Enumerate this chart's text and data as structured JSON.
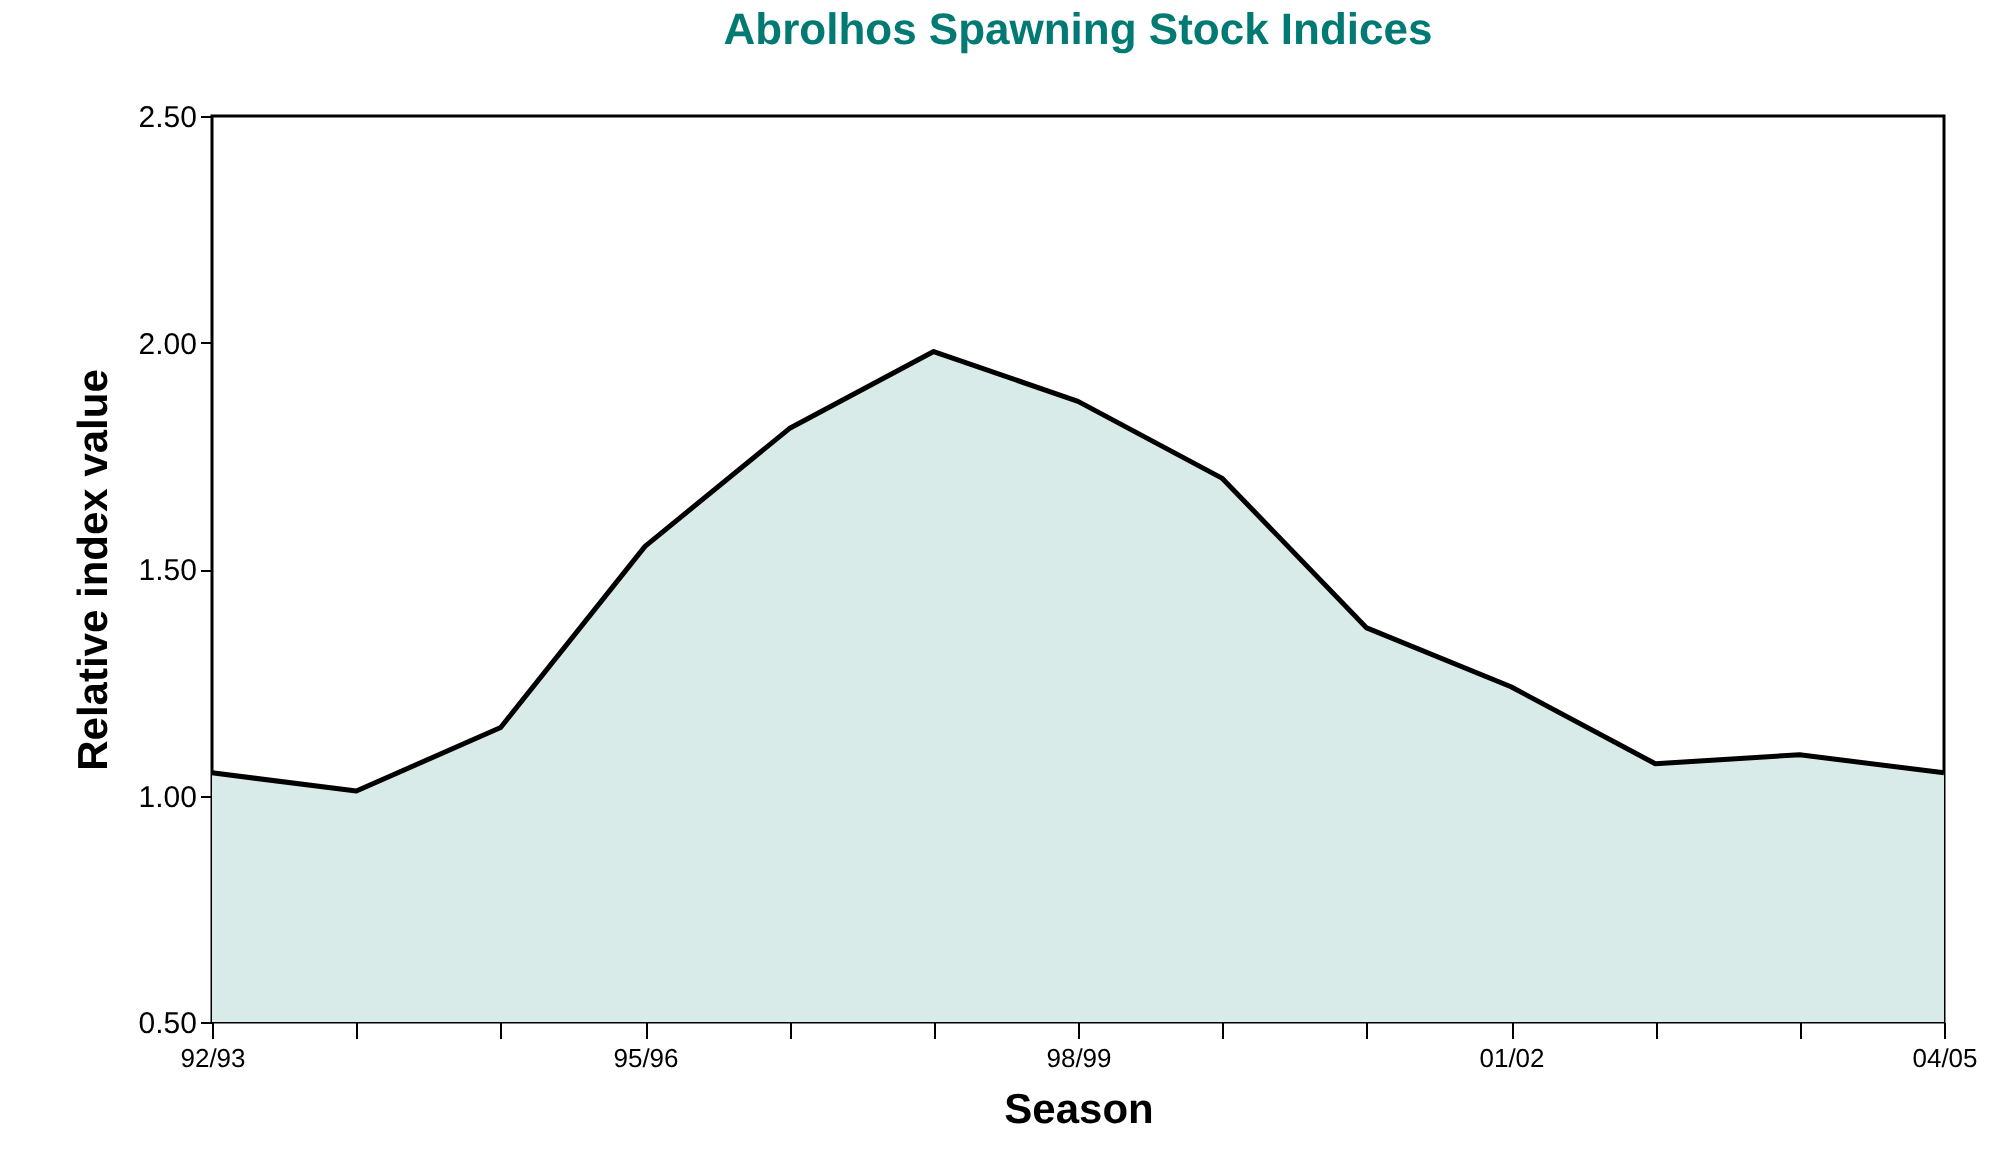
{
  "chart_data": {
    "type": "area",
    "title": "Abrolhos Spawning Stock Indices",
    "xlabel": "Season",
    "ylabel": "Relative index value",
    "categories": [
      "92/93",
      null,
      null,
      "95/96",
      null,
      null,
      "98/99",
      null,
      null,
      "01/02",
      null,
      null,
      "04/05"
    ],
    "series": [
      {
        "color": "#d9ebe9",
        "values": [
          1.05,
          1.01,
          1.15,
          1.55,
          1.81,
          1.98,
          1.87,
          1.7,
          1.37,
          1.24,
          1.07,
          1.09,
          1.05
        ]
      }
    ],
    "ylim": [
      0.5,
      2.5
    ],
    "yticks": [
      {
        "value": 0.5,
        "label": "0.50"
      },
      {
        "value": 1,
        "label": "1.00"
      },
      {
        "value": 1.5,
        "label": "1.50"
      },
      {
        "value": 2,
        "label": "2.00"
      },
      {
        "value": 2.5,
        "label": "2.50"
      }
    ],
    "grid": false
  }
}
